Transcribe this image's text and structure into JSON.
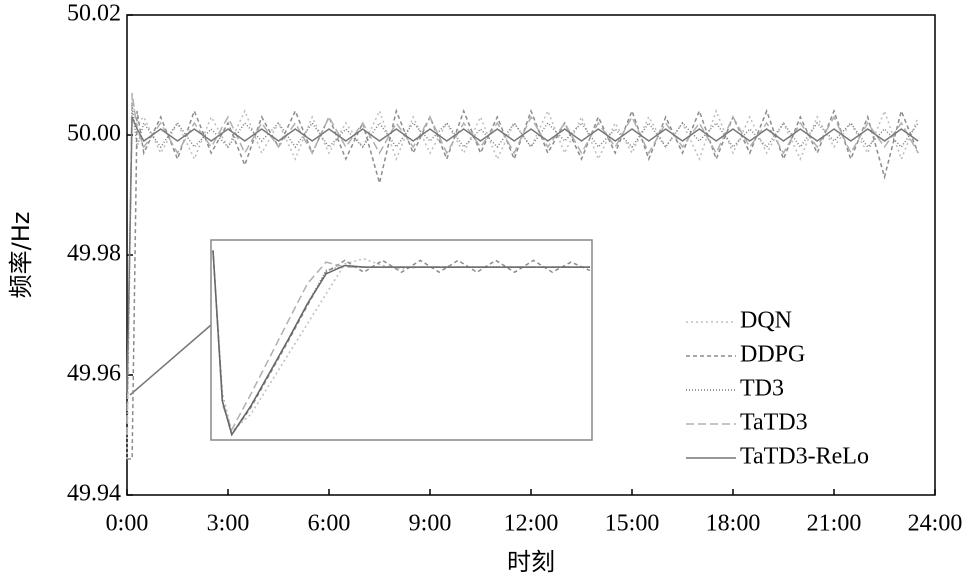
{
  "chart_data": [
    {
      "type": "line",
      "x_label": "时刻",
      "y_label": "频率/Hz",
      "x": [
        0,
        0.15,
        0.3,
        0.5,
        1,
        1.5,
        2,
        2.5,
        3,
        3.5,
        4,
        4.5,
        5,
        5.5,
        6,
        6.5,
        7,
        7.5,
        8,
        8.5,
        9,
        9.5,
        10,
        10.5,
        11,
        11.5,
        12,
        12.5,
        13,
        13.5,
        14,
        14.5,
        15,
        15.5,
        16,
        16.5,
        17,
        17.5,
        18,
        18.5,
        19,
        19.5,
        20,
        20.5,
        21,
        21.5,
        22,
        22.5,
        23,
        23.5
      ],
      "xlim": [
        0,
        24
      ],
      "xticks": [
        {
          "value": 0,
          "label": "0:00"
        },
        {
          "value": 3,
          "label": "3:00"
        },
        {
          "value": 6,
          "label": "6:00"
        },
        {
          "value": 9,
          "label": "9:00"
        },
        {
          "value": 12,
          "label": "12:00"
        },
        {
          "value": 15,
          "label": "15:00"
        },
        {
          "value": 18,
          "label": "18:00"
        },
        {
          "value": 21,
          "label": "21:00"
        },
        {
          "value": 24,
          "label": "24:00"
        }
      ],
      "ylim": [
        49.94,
        50.02
      ],
      "yticks": [
        {
          "value": 49.94,
          "label": "49.94"
        },
        {
          "value": 49.96,
          "label": "49.96"
        },
        {
          "value": 49.98,
          "label": "49.98"
        },
        {
          "value": 50,
          "label": "50.00"
        },
        {
          "value": 50.02,
          "label": "50.02"
        }
      ],
      "legend": "lower right",
      "series": [
        {
          "name": "DQN",
          "color": "#bdbdbd",
          "dash": "2,3",
          "values": [
            49.946,
            50.006,
            50.002,
            50.003,
            49.997,
            50.002,
            49.996,
            50.003,
            49.998,
            50.004,
            49.997,
            50.002,
            49.996,
            50.003,
            49.997,
            50.002,
            49.998,
            50.004,
            49.996,
            50.003,
            49.997,
            50.002,
            49.997,
            50.003,
            49.996,
            50.002,
            49.998,
            50.004,
            49.997,
            50.003,
            49.996,
            50.002,
            49.997,
            50.003,
            49.998,
            50.002,
            49.996,
            50.004,
            49.997,
            50.003,
            49.997,
            50.002,
            49.996,
            50.003,
            49.998,
            50.002,
            49.997,
            50.004,
            49.996,
            50.003
          ]
        },
        {
          "name": "DDPG",
          "color": "#8c8c8c",
          "dash": "4,3",
          "values": [
            49.946,
            49.946,
            50.004,
            49.997,
            50.003,
            49.996,
            50.004,
            49.997,
            50.002,
            49.995,
            50.003,
            49.998,
            50.004,
            49.997,
            50.003,
            49.996,
            50.002,
            49.992,
            50.004,
            49.997,
            50.003,
            49.996,
            50.004,
            49.997,
            50.003,
            49.996,
            50.004,
            49.997,
            50.002,
            49.996,
            50.003,
            49.997,
            50.004,
            49.996,
            50.003,
            49.997,
            50.004,
            49.996,
            50.003,
            49.997,
            50.004,
            49.996,
            50.003,
            49.997,
            50.004,
            49.996,
            50.003,
            49.993,
            50.004,
            49.997
          ]
        },
        {
          "name": "TD3",
          "color": "#7a7a7a",
          "dash": "1,2",
          "values": [
            49.952,
            50.005,
            49.998,
            50.002,
            49.998,
            50.002,
            49.998,
            50.001,
            49.998,
            50.002,
            49.999,
            50.002,
            49.998,
            50.002,
            49.998,
            50.001,
            49.998,
            50.002,
            49.998,
            50.002,
            49.999,
            50.002,
            49.998,
            50.001,
            49.998,
            50.002,
            49.998,
            50.002,
            49.999,
            50.002,
            49.998,
            50.001,
            49.998,
            50.002,
            49.998,
            50.002,
            49.999,
            50.002,
            49.998,
            50.001,
            49.998,
            50.002,
            49.998,
            50.002,
            49.999,
            50.002,
            49.998,
            50.001,
            49.998,
            50.002
          ]
        },
        {
          "name": "TaTD3",
          "color": "#b0b0b0",
          "dash": "8,4",
          "values": [
            49.95,
            50.007,
            50.001,
            49.998,
            50.002,
            49.997,
            50.002,
            49.998,
            50.003,
            49.997,
            50.002,
            49.998,
            50.002,
            49.997,
            50.003,
            49.998,
            50.002,
            49.997,
            50.002,
            49.998,
            50.003,
            49.997,
            50.002,
            49.998,
            50.002,
            49.997,
            50.003,
            49.998,
            50.002,
            49.997,
            50.002,
            49.998,
            50.003,
            49.997,
            50.002,
            49.998,
            50.002,
            49.997,
            50.003,
            49.998,
            50.002,
            49.997,
            50.002,
            49.998,
            50.003,
            49.997,
            50.002,
            49.998,
            50.002,
            49.997
          ]
        },
        {
          "name": "TaTD3-ReLo",
          "color": "#777777",
          "dash": "",
          "values": [
            49.957,
            50.003,
            50.001,
            49.999,
            50.001,
            49.999,
            50.001,
            49.999,
            50.001,
            49.999,
            50.001,
            49.999,
            50.001,
            49.999,
            50.001,
            49.999,
            50.001,
            49.999,
            50.001,
            49.999,
            50.001,
            49.999,
            50.001,
            49.999,
            50.001,
            49.999,
            50.001,
            49.999,
            50.001,
            49.999,
            50.001,
            49.999,
            50.001,
            49.999,
            50.001,
            49.999,
            50.001,
            49.999,
            50.001,
            49.999,
            50.001,
            49.999,
            50.001,
            49.999,
            50.001,
            49.999,
            50.001,
            49.999,
            50.001,
            49.999
          ]
        }
      ]
    },
    {
      "type": "line",
      "x": [
        0,
        0.5,
        1,
        2,
        3,
        4,
        5,
        6,
        7,
        8,
        9,
        10,
        11,
        12,
        13,
        14,
        15,
        16,
        17,
        18,
        19,
        20
      ],
      "xlim": [
        0,
        20
      ],
      "ylim": [
        -0.02,
        1.15
      ],
      "series": [
        {
          "color": "#bdbdbd",
          "dash": "2,3",
          "values": [
            1.1,
            0.25,
            0.02,
            0.12,
            0.3,
            0.48,
            0.66,
            0.84,
            1.02,
            1.05,
            1.01,
            0.99,
            1.0,
            1.0,
            1.0,
            1.0,
            1.0,
            1.0,
            1.0,
            1.0,
            1.0,
            1.0
          ]
        },
        {
          "color": "#8c8c8c",
          "dash": "4,3",
          "values": [
            1.1,
            0.2,
            0.0,
            0.16,
            0.36,
            0.56,
            0.77,
            0.97,
            1.04,
            0.97,
            1.04,
            0.97,
            1.04,
            0.97,
            1.04,
            0.97,
            1.04,
            0.97,
            1.04,
            0.97,
            1.03,
            0.98
          ]
        },
        {
          "color": "#7a7a7a",
          "dash": "1,2",
          "values": [
            1.1,
            0.2,
            0.0,
            0.17,
            0.37,
            0.57,
            0.78,
            0.98,
            1.01,
            1.0,
            1.0,
            1.0,
            1.0,
            1.0,
            1.0,
            1.0,
            1.0,
            1.0,
            1.0,
            1.0,
            1.0,
            1.0
          ]
        },
        {
          "color": "#b0b0b0",
          "dash": "8,4",
          "values": [
            1.1,
            0.18,
            0.03,
            0.24,
            0.46,
            0.68,
            0.9,
            1.03,
            1.0,
            1.0,
            1.0,
            1.0,
            1.0,
            1.0,
            1.0,
            1.0,
            1.0,
            1.0,
            1.0,
            1.0,
            1.0,
            1.0
          ]
        },
        {
          "color": "#666666",
          "dash": "",
          "values": [
            1.1,
            0.2,
            0.0,
            0.17,
            0.37,
            0.57,
            0.78,
            0.96,
            1.01,
            1.0,
            1.0,
            1.0,
            1.0,
            1.0,
            1.0,
            1.0,
            1.0,
            1.0,
            1.0,
            1.0,
            1.0,
            1.0
          ]
        }
      ]
    }
  ]
}
